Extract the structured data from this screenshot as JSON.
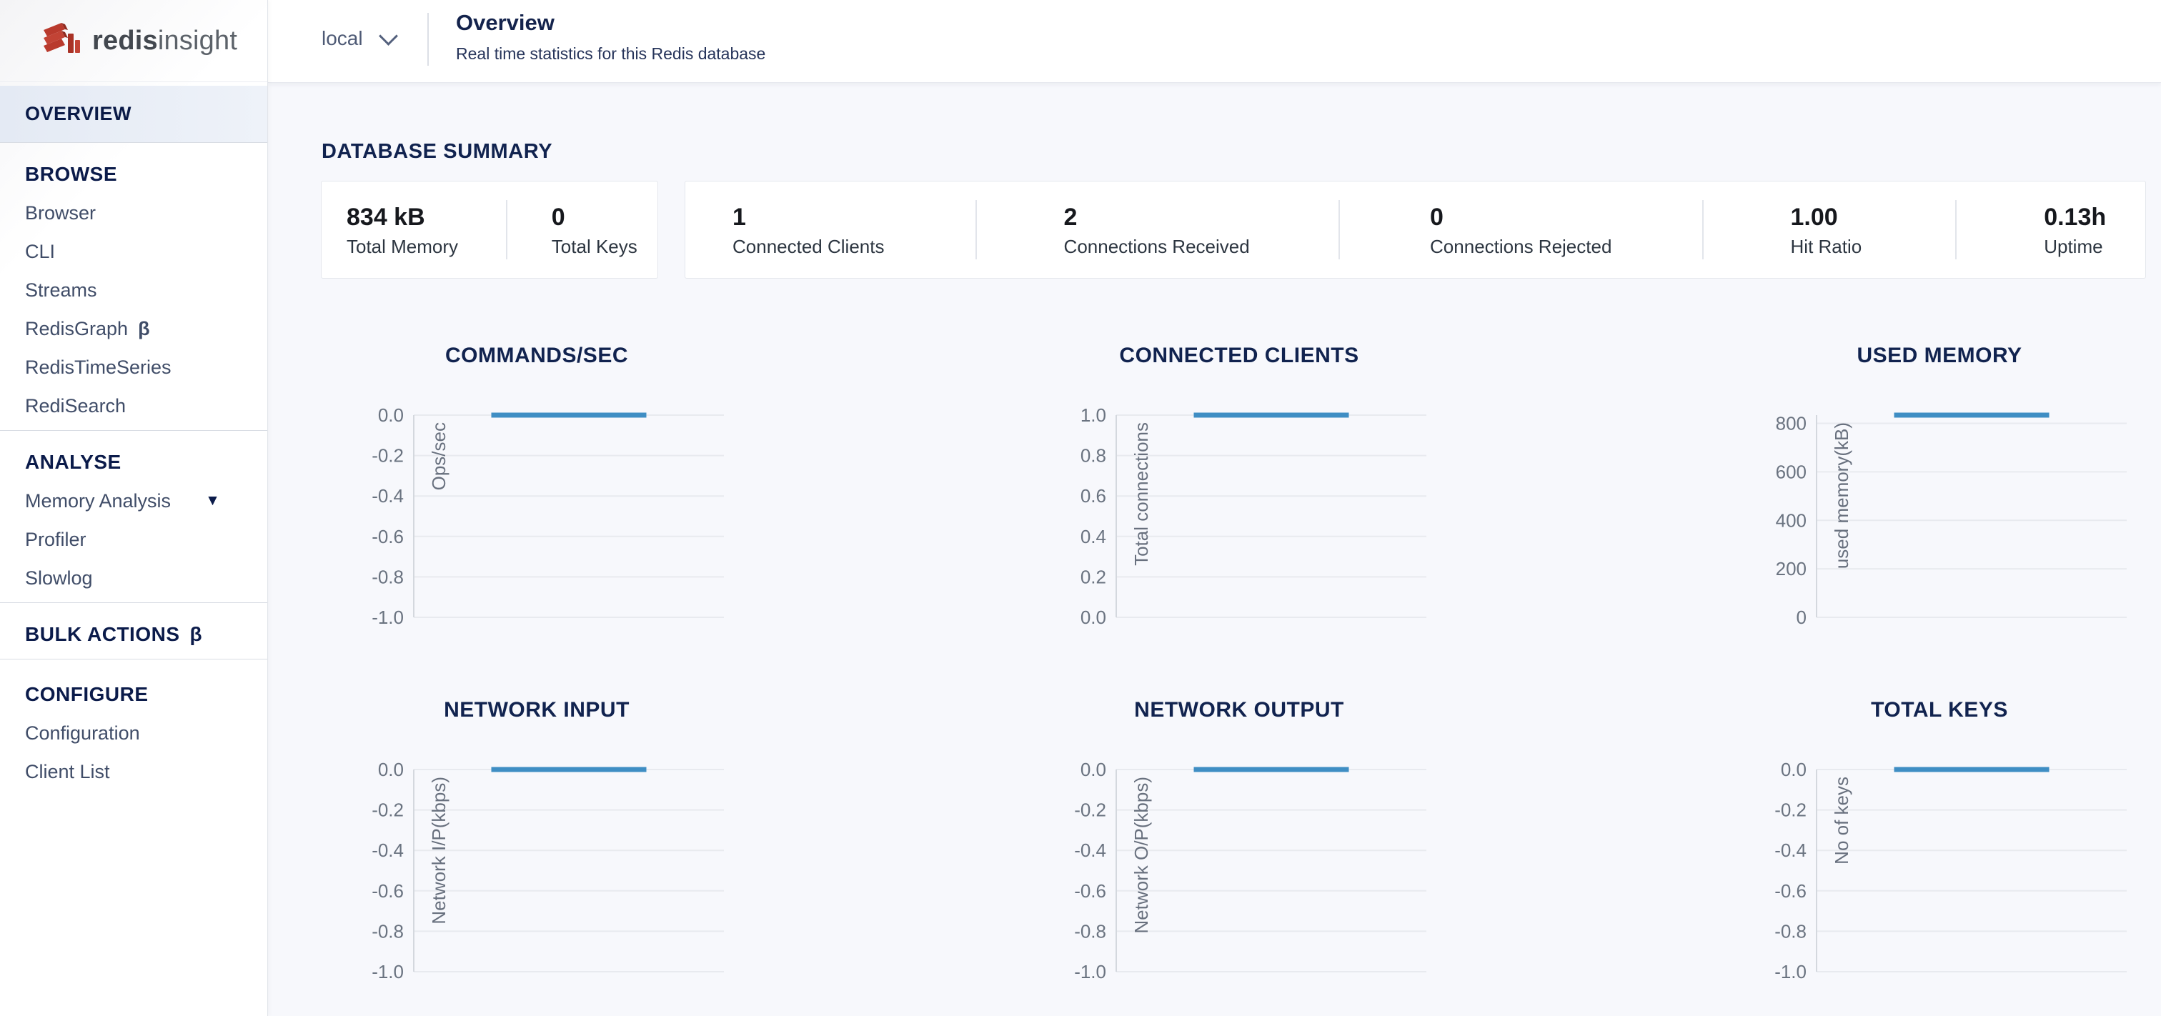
{
  "brand": {
    "logo_bold": "redis",
    "logo_light": "insight"
  },
  "header": {
    "database_selector": "local",
    "title": "Overview",
    "subtitle": "Real time statistics for this Redis database"
  },
  "sidebar": {
    "sections": [
      {
        "items": [
          {
            "label": "OVERVIEW",
            "active": true
          }
        ]
      },
      {
        "header": "BROWSE",
        "items": [
          {
            "label": "Browser"
          },
          {
            "label": "CLI"
          },
          {
            "label": "Streams"
          },
          {
            "label": "RedisGraph",
            "beta": true
          },
          {
            "label": "RedisTimeSeries"
          },
          {
            "label": "RediSearch"
          }
        ]
      },
      {
        "header": "ANALYSE",
        "items": [
          {
            "label": "Memory Analysis",
            "has_dropdown": true
          },
          {
            "label": "Profiler"
          },
          {
            "label": "Slowlog"
          }
        ]
      },
      {
        "header": "BULK ACTIONS",
        "header_beta": true,
        "items": []
      },
      {
        "header": "CONFIGURE",
        "items": [
          {
            "label": "Configuration"
          },
          {
            "label": "Client List"
          }
        ]
      }
    ]
  },
  "summary": {
    "title": "DATABASE SUMMARY",
    "cards": [
      {
        "stats": [
          {
            "value": "834 kB",
            "label": "Total Memory"
          },
          {
            "value": "0",
            "label": "Total Keys"
          }
        ]
      },
      {
        "stats": [
          {
            "value": "1",
            "label": "Connected Clients"
          },
          {
            "value": "2",
            "label": "Connections Received"
          },
          {
            "value": "0",
            "label": "Connections Rejected"
          },
          {
            "value": "1.00",
            "label": "Hit Ratio"
          },
          {
            "value": "0.13h",
            "label": "Uptime"
          }
        ]
      }
    ]
  },
  "chart_data": [
    {
      "type": "line",
      "title": "COMMANDS/SEC",
      "ylabel": "Ops/sec",
      "ylim": [
        -1.0,
        0.0
      ],
      "yticks": [
        0.0,
        -0.2,
        -0.4,
        -0.6,
        -0.8,
        -1.0
      ],
      "ytick_labels": [
        "0.0",
        "-0.2",
        "-0.4",
        "-0.6",
        "-0.8",
        "-1.0"
      ],
      "grid": true,
      "legend": "none",
      "series": [
        {
          "name": "Ops/sec",
          "value": 0.0,
          "x_extent": [
            0.25,
            0.75
          ]
        }
      ]
    },
    {
      "type": "line",
      "title": "CONNECTED CLIENTS",
      "ylabel": "Total connections",
      "ylim": [
        0.0,
        1.0
      ],
      "yticks": [
        1.0,
        0.8,
        0.6,
        0.4,
        0.2,
        0.0
      ],
      "ytick_labels": [
        "1.0",
        "0.8",
        "0.6",
        "0.4",
        "0.2",
        "0.0"
      ],
      "grid": true,
      "legend": "none",
      "series": [
        {
          "name": "Total connections",
          "value": 1.0,
          "x_extent": [
            0.25,
            0.75
          ]
        }
      ]
    },
    {
      "type": "line",
      "title": "USED MEMORY",
      "ylabel": "used memory(kB)",
      "ylim": [
        0,
        834
      ],
      "yticks": [
        800,
        600,
        400,
        200,
        0
      ],
      "ytick_labels": [
        "800",
        "600",
        "400",
        "200",
        "0"
      ],
      "grid": true,
      "legend": "none",
      "series": [
        {
          "name": "used memory(kB)",
          "value": 834,
          "x_extent": [
            0.25,
            0.75
          ]
        }
      ]
    },
    {
      "type": "line",
      "title": "NETWORK INPUT",
      "ylabel": "Network I/P(kbps)",
      "ylim": [
        -1.0,
        0.0
      ],
      "yticks": [
        0.0,
        -0.2,
        -0.4,
        -0.6,
        -0.8,
        -1.0
      ],
      "ytick_labels": [
        "0.0",
        "-0.2",
        "-0.4",
        "-0.6",
        "-0.8",
        "-1.0"
      ],
      "grid": true,
      "legend": "none",
      "series": [
        {
          "name": "Network I/P(kbps)",
          "value": 0.0,
          "x_extent": [
            0.25,
            0.75
          ]
        }
      ]
    },
    {
      "type": "line",
      "title": "NETWORK OUTPUT",
      "ylabel": "Network O/P(kbps)",
      "ylim": [
        -1.0,
        0.0
      ],
      "yticks": [
        0.0,
        -0.2,
        -0.4,
        -0.6,
        -0.8,
        -1.0
      ],
      "ytick_labels": [
        "0.0",
        "-0.2",
        "-0.4",
        "-0.6",
        "-0.8",
        "-1.0"
      ],
      "grid": true,
      "legend": "none",
      "series": [
        {
          "name": "Network O/P(kbps)",
          "value": 0.0,
          "x_extent": [
            0.25,
            0.75
          ]
        }
      ]
    },
    {
      "type": "line",
      "title": "TOTAL KEYS",
      "ylabel": "No of keys",
      "ylim": [
        -1.0,
        0.0
      ],
      "yticks": [
        0.0,
        -0.2,
        -0.4,
        -0.6,
        -0.8,
        -1.0
      ],
      "ytick_labels": [
        "0.0",
        "-0.2",
        "-0.4",
        "-0.6",
        "-0.8",
        "-1.0"
      ],
      "grid": true,
      "legend": "none",
      "series": [
        {
          "name": "No of keys",
          "value": 0.0,
          "x_extent": [
            0.25,
            0.75
          ]
        }
      ]
    }
  ],
  "colors": {
    "accent_line": "#3f8ec4",
    "navy": "#11234f",
    "active_bg": "#e7edf6"
  }
}
